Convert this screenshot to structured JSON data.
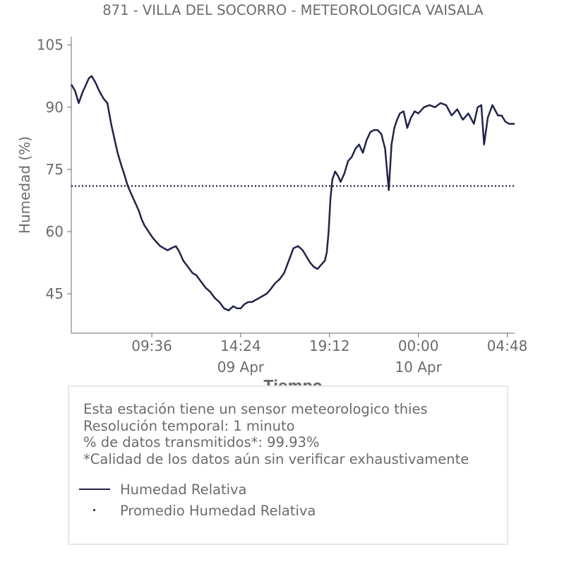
{
  "chart_data": {
    "type": "line",
    "title": "871 - VILLA DEL SOCORRO - METEOROLOGICA VAISALA",
    "xlabel": "Tiempo",
    "ylabel": "Humedad (%)",
    "ylim": [
      35.5,
      107
    ],
    "y_ticks": [
      "105",
      "90",
      "75",
      "60",
      "45"
    ],
    "y_tick_values": [
      105,
      90,
      75,
      60,
      45
    ],
    "x_range_hours": [
      5.25,
      29.2
    ],
    "x_ticks": [
      "09:36",
      "14:24",
      "19:12",
      "00:00",
      "04:48"
    ],
    "x_tick_hours": [
      9.6,
      14.4,
      19.2,
      24.0,
      28.8
    ],
    "date_labels": [
      "09 Apr",
      "10 Apr"
    ],
    "date_label_hours": [
      14.4,
      24.0
    ],
    "grid": false,
    "series": [
      {
        "name": "Humedad Relativa",
        "style": "solid",
        "x": [
          5.25,
          5.45,
          5.65,
          5.85,
          6.0,
          6.2,
          6.35,
          6.55,
          6.75,
          7.0,
          7.2,
          7.4,
          7.55,
          7.75,
          7.95,
          8.1,
          8.3,
          8.45,
          8.6,
          8.75,
          8.9,
          9.05,
          9.2,
          9.35,
          9.5,
          9.65,
          9.85,
          10.05,
          10.25,
          10.45,
          10.65,
          10.9,
          11.1,
          11.3,
          11.55,
          11.8,
          12.0,
          12.25,
          12.5,
          12.75,
          13.0,
          13.25,
          13.5,
          13.75,
          14.0,
          14.2,
          14.4,
          14.6,
          14.8,
          15.0,
          15.2,
          15.4,
          15.6,
          15.8,
          16.0,
          16.25,
          16.5,
          16.75,
          17.0,
          17.25,
          17.5,
          17.75,
          17.95,
          18.15,
          18.35,
          18.55,
          18.75,
          18.95,
          19.05,
          19.15,
          19.25,
          19.35,
          19.5,
          19.65,
          19.8,
          20.0,
          20.2,
          20.4,
          20.6,
          20.8,
          21.0,
          21.2,
          21.4,
          21.6,
          21.8,
          22.0,
          22.2,
          22.4,
          22.55,
          22.7,
          22.85,
          23.0,
          23.2,
          23.4,
          23.6,
          23.8,
          24.0,
          24.3,
          24.6,
          24.9,
          25.2,
          25.5,
          25.8,
          26.1,
          26.4,
          26.7,
          27.0,
          27.2,
          27.4,
          27.55,
          27.75,
          28.0,
          28.3,
          28.5,
          28.7,
          28.9,
          29.2
        ],
        "values": [
          95.5,
          94.0,
          91.0,
          93.5,
          95.0,
          97.0,
          97.5,
          96.0,
          94.0,
          92.0,
          91.0,
          86.0,
          83.0,
          79.0,
          76.0,
          74.0,
          71.0,
          69.5,
          68.0,
          66.5,
          65.0,
          63.0,
          61.5,
          60.5,
          59.5,
          58.5,
          57.5,
          56.5,
          56.0,
          55.5,
          56.0,
          56.5,
          55.0,
          53.0,
          51.5,
          50.0,
          49.5,
          48.0,
          46.5,
          45.5,
          44.0,
          43.0,
          41.5,
          41.0,
          42.0,
          41.5,
          41.5,
          42.5,
          43.0,
          43.0,
          43.5,
          44.0,
          44.5,
          45.0,
          46.0,
          47.5,
          48.5,
          50.0,
          53.0,
          56.0,
          56.5,
          55.5,
          54.0,
          52.5,
          51.5,
          51.0,
          52.0,
          53.0,
          55.0,
          60.0,
          68.0,
          72.5,
          74.5,
          73.5,
          72.0,
          74.0,
          77.0,
          78.0,
          80.0,
          81.0,
          79.0,
          82.0,
          84.0,
          84.5,
          84.5,
          83.5,
          80.0,
          70.0,
          81.0,
          85.0,
          87.0,
          88.5,
          89.0,
          85.0,
          87.5,
          89.0,
          88.5,
          90.0,
          90.5,
          90.0,
          91.0,
          90.5,
          88.0,
          89.5,
          87.0,
          88.5,
          86.0,
          90.0,
          90.5,
          81.0,
          87.5,
          90.5,
          88.0,
          88.0,
          86.5,
          86.0,
          86.0
        ]
      },
      {
        "name": "Promedio Humedad Relativa",
        "style": "dotted",
        "constant": 71.0
      }
    ]
  },
  "info": {
    "line1": "Esta estación tiene un sensor meteorologico thies",
    "line2": "Resolución temporal: 1 minuto",
    "line3": "% de datos transmitidos*: 99.93%",
    "line4": "*Calidad de los datos aún sin verificar exhaustivamente"
  },
  "legend": {
    "item1": "Humedad Relativa",
    "item2": "Promedio Humedad Relativa"
  },
  "colors": {
    "series": "#22234a",
    "text": "#6b6b6b",
    "axis": "#6b6b6b",
    "box_border": "#e6e6e6"
  }
}
